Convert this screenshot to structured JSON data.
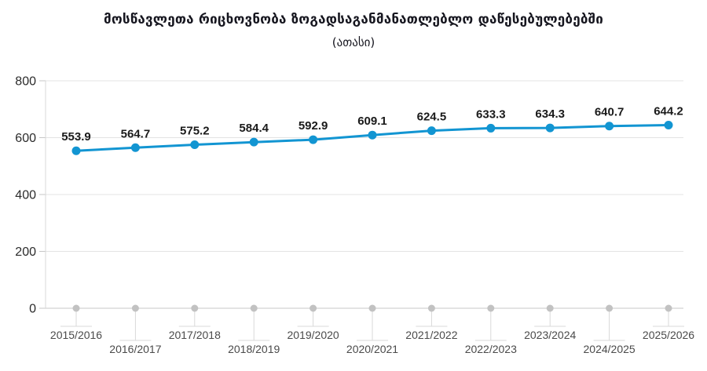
{
  "chart_data": {
    "type": "line",
    "title": "მოსწავლეთა რიცხოვნობა ზოგადსაგანმანათლებლო დაწესებულებებში",
    "subtitle": "(ათასი)",
    "categories": [
      "2015/2016",
      "2016/2017",
      "2017/2018",
      "2018/2019",
      "2019/2020",
      "2020/2021",
      "2021/2022",
      "2022/2023",
      "2023/2024",
      "2024/2025",
      "2025/2026"
    ],
    "values": [
      553.9,
      564.7,
      575.2,
      584.4,
      592.9,
      609.1,
      624.5,
      633.3,
      634.3,
      640.7,
      644.2
    ],
    "data_labels": [
      "553.9",
      "564.7",
      "575.2",
      "584.4",
      "592.9",
      "609.1",
      "624.5",
      "633.3",
      "634.3",
      "640.7",
      "644.2"
    ],
    "y_ticks": [
      0,
      200,
      400,
      600,
      800
    ],
    "y_tick_labels": [
      "0",
      "200",
      "400",
      "600",
      "800"
    ],
    "ylim": [
      0,
      800
    ],
    "xlabel": "",
    "ylabel": "",
    "grid": true,
    "legend": "none",
    "label_row_pattern": "staggered-two-rows",
    "colors": {
      "line": "#1295d2",
      "point": "#1295d2",
      "data_label": "#1a1a1a",
      "y_axis_label": "#2b2b2b",
      "x_axis_label": "#4a4a4a",
      "gridline": "#e3e3e3",
      "y_axis_line": "#d9d9d9",
      "bottom_axis_line": "#c7c7c7",
      "tick_dot": "#c2c2c2",
      "callout_line": "#d9d9d9",
      "title": "#16161f",
      "background": "#ffffff"
    }
  }
}
